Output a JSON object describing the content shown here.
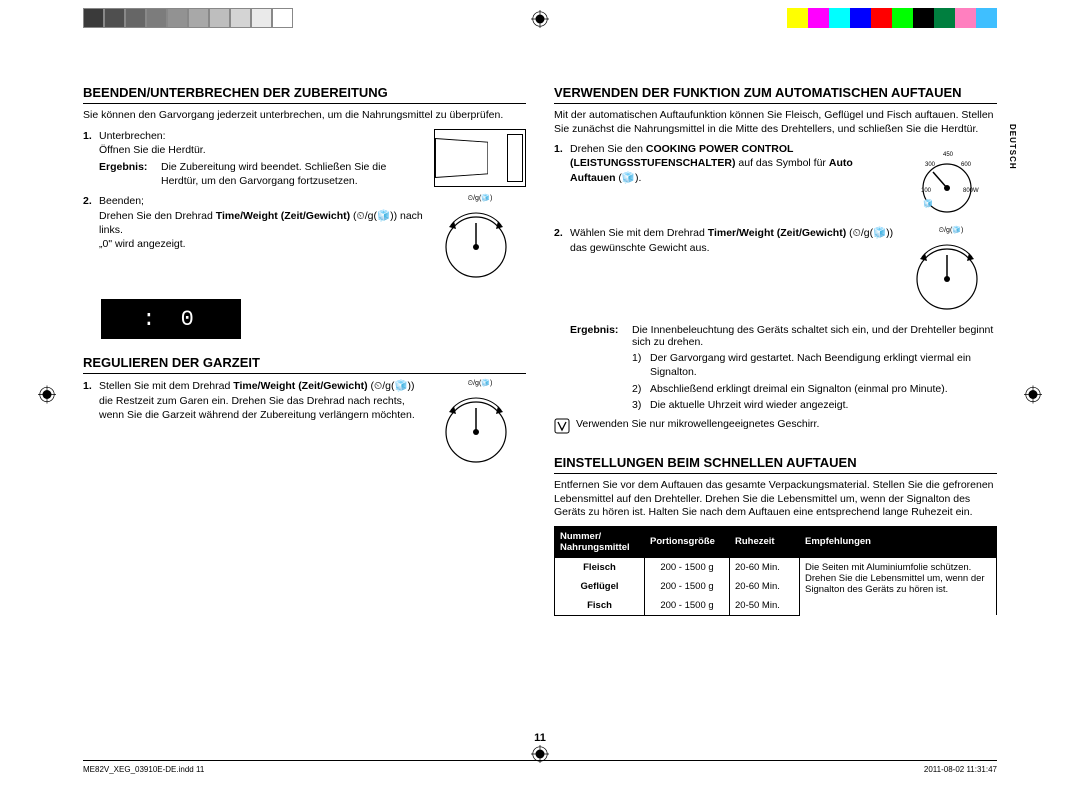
{
  "color_bars": {
    "left_gray": [
      "#3a3a3a",
      "#4f4f4f",
      "#666666",
      "#7c7c7c",
      "#929292",
      "#a8a8a8",
      "#bebebe",
      "#d4d4d4",
      "#eaeaea",
      "#ffffff"
    ],
    "right_colors": [
      "#ffff00",
      "#ff00ff",
      "#00ffff",
      "#0000ff",
      "#ff0000",
      "#00ff00",
      "#000000",
      "#007f3f",
      "#ff7fbf",
      "#3fbfff"
    ]
  },
  "lang_tab": "DEUTSCH",
  "page_number": "11",
  "footer_left": "ME82V_XEG_03910E-DE.indd   11",
  "footer_right": "2011-08-02   11:31:47",
  "left": {
    "s1": {
      "title": "BEENDEN/UNTERBRECHEN DER ZUBEREITUNG",
      "intro": "Sie können den Garvorgang jederzeit unterbrechen, um die Nahrungsmittel zu überprüfen.",
      "step1_num": "1.",
      "step1_l1": "Unterbrechen:",
      "step1_l2": "Öffnen Sie die Herdtür.",
      "result_lbl": "Ergebnis:",
      "result_txt": "Die Zubereitung wird beendet. Schließen Sie die Herdtür, um den Garvorgang fortzusetzen.",
      "step2_num": "2.",
      "step2_l1": "Beenden;",
      "step2_l2a": "Drehen Sie den Drehrad ",
      "step2_l2b": "Time/Weight (Zeit/Gewicht)",
      "step2_l2c": " (",
      "step2_l2d": ") nach links.",
      "step2_l3": "„0\" wird angezeigt.",
      "dial_label": "⏲/g(🧊)",
      "display": ":   0"
    },
    "s2": {
      "title": "REGULIEREN DER GARZEIT",
      "step1_num": "1.",
      "step1_a": "Stellen Sie mit dem Drehrad ",
      "step1_b": "Time/Weight (Zeit/Gewicht)",
      "step1_c": " (",
      "step1_d": ") die Restzeit zum Garen ein. Drehen Sie das Drehrad nach rechts, wenn Sie die Garzeit während der Zubereitung verlängern möchten.",
      "dial_label": "⏲/g(🧊)"
    }
  },
  "right": {
    "s3": {
      "title": "VERWENDEN DER FUNKTION ZUM AUTOMATISCHEN AUFTAUEN",
      "intro": "Mit der automatischen Auftaufunktion können Sie Fleisch, Geflügel und Fisch auftauen. Stellen Sie zunächst die Nahrungsmittel in die Mitte des Drehtellers, und schließen Sie die Herdtür.",
      "step1_num": "1.",
      "step1_a": "Drehen Sie den ",
      "step1_b": "COOKING POWER CONTROL (LEISTUNGSSTUFENSCHALTER)",
      "step1_c": " auf das Symbol für ",
      "step1_d": "Auto Auftauen",
      "step1_e": " (🧊).",
      "step2_num": "2.",
      "step2_a": "Wählen Sie mit dem Drehrad ",
      "step2_b": "Timer/Weight (Zeit/Gewicht)",
      "step2_c": " (",
      "step2_d": ") das gewünschte Gewicht aus.",
      "dial_label": "⏲/g(🧊)",
      "power_marks": [
        "100",
        "300",
        "450",
        "600",
        "800W"
      ],
      "result_lbl": "Ergebnis:",
      "result_txt": "Die Innenbeleuchtung des Geräts schaltet sich ein, und der Drehteller beginnt sich zu drehen.",
      "sub1_n": "1)",
      "sub1_t": "Der Garvorgang wird gestartet. Nach Beendigung erklingt viermal ein Signalton.",
      "sub2_n": "2)",
      "sub2_t": "Abschließend erklingt dreimal ein Signalton (einmal pro Minute).",
      "sub3_n": "3)",
      "sub3_t": "Die aktuelle Uhrzeit wird wieder angezeigt.",
      "note": "Verwenden Sie nur mikrowellengeeignetes Geschirr."
    },
    "s4": {
      "title": "EINSTELLUNGEN BEIM SCHNELLEN AUFTAUEN",
      "intro": "Entfernen Sie vor dem Auftauen das gesamte Verpackungsmaterial. Stellen Sie die gefrorenen Lebensmittel auf den Drehteller. Drehen Sie die Lebensmittel um, wenn der Signalton des Geräts zu hören ist. Halten Sie nach dem Auftauen eine entsprechend lange Ruhezeit ein.",
      "headers": [
        "Nummer/\nNahrungsmittel",
        "Portionsgröße",
        "Ruhezeit",
        "Empfehlungen"
      ],
      "rows": [
        {
          "food": "Fleisch",
          "portion": "200 - 1500 g",
          "rest": "20-60 Min."
        },
        {
          "food": "Geflügel",
          "portion": "200 - 1500 g",
          "rest": "20-60 Min."
        },
        {
          "food": "Fisch",
          "portion": "200 - 1500 g",
          "rest": "20-50 Min."
        }
      ],
      "tip": "Die Seiten mit Aluminiumfolie schützen. Drehen Sie die Lebensmittel um, wenn der Signalton des Geräts zu hören ist."
    }
  }
}
